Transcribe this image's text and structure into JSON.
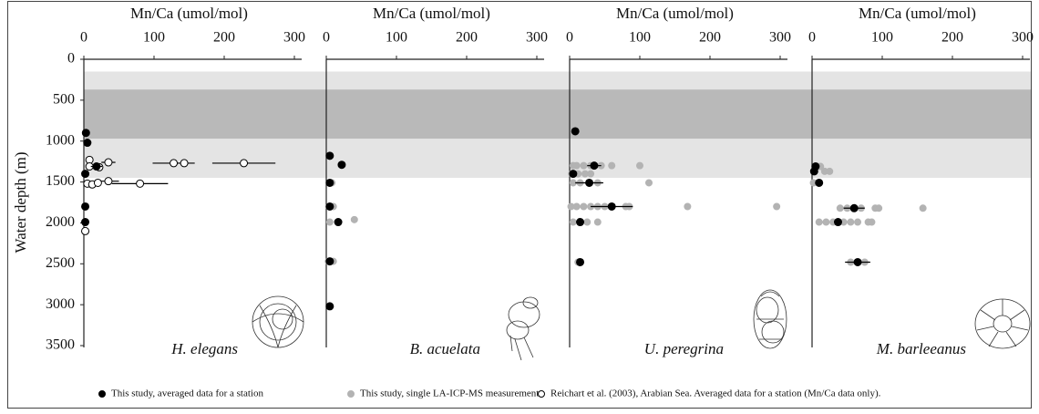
{
  "ylabel": "Water depth (m)",
  "shading": [
    {
      "from": 150,
      "to": 1450,
      "color": "#e4e4e4"
    },
    {
      "from": 370,
      "to": 970,
      "color": "#b9b9b9"
    }
  ],
  "legend": {
    "position": "bottom",
    "series": [
      {
        "name": "This study, averaged data for a station",
        "color": "#000000",
        "edge": "#000000"
      },
      {
        "name": "This study, single LA-ICP-MS measurement",
        "color": "#b3b3b3",
        "edge": "#b3b3b3"
      },
      {
        "name": "Reichart et al. (2003), Arabian Sea. Averaged data for a station (Mn/Ca data only).",
        "color": "#ffffff",
        "edge": "#000000"
      }
    ]
  },
  "chart_data": [
    {
      "type": "scatter",
      "title": "Mn/Ca (umol/mol)",
      "species": "H. elegans",
      "xlim": [
        0,
        300
      ],
      "xticks": [
        0,
        100,
        200,
        300
      ],
      "ylim": [
        0,
        3500
      ],
      "yticks": [
        0,
        500,
        1000,
        1500,
        2000,
        2500,
        3000,
        3500
      ],
      "y_inverted": true,
      "series": [
        {
          "color": "#b3b3b3",
          "edge": "#b3b3b3",
          "x": [],
          "y": [],
          "xerr": []
        },
        {
          "color": "#ffffff",
          "edge": "#000000",
          "x": [
            8,
            35,
            128,
            143,
            228,
            8,
            22,
            35,
            80,
            5,
            12,
            20,
            2
          ],
          "y": [
            1230,
            1260,
            1270,
            1270,
            1270,
            1310,
            1320,
            1490,
            1520,
            1520,
            1530,
            1510,
            2100
          ],
          "xerr": [
            null,
            10,
            30,
            null,
            45,
            null,
            null,
            15,
            40,
            null,
            null,
            null,
            null
          ]
        },
        {
          "color": "#000000",
          "edge": "#000000",
          "x": [
            3,
            5,
            18,
            2,
            2,
            2
          ],
          "y": [
            900,
            1020,
            1310,
            1400,
            1800,
            1990
          ],
          "xerr": [
            null,
            null,
            8,
            null,
            null,
            null
          ]
        }
      ]
    },
    {
      "type": "scatter",
      "title": "Mn/Ca (umol/mol)",
      "species": "B. acuelata",
      "xlim": [
        0,
        300
      ],
      "xticks": [
        0,
        100,
        200,
        300
      ],
      "ylim": [
        0,
        3500
      ],
      "y_inverted": true,
      "series": [
        {
          "color": "#b3b3b3",
          "edge": "#b3b3b3",
          "x": [
            8,
            10,
            4,
            40,
            5,
            10,
            3
          ],
          "y": [
            1510,
            1800,
            1800,
            1960,
            1990,
            2470,
            2470
          ],
          "xerr": [
            null,
            null,
            null,
            null,
            null,
            null,
            null
          ]
        },
        {
          "color": "#000000",
          "edge": "#000000",
          "x": [
            5,
            22,
            5,
            5,
            17,
            5,
            5
          ],
          "y": [
            1180,
            1290,
            1510,
            1800,
            1990,
            2470,
            3020
          ],
          "xerr": [
            null,
            null,
            null,
            null,
            null,
            null,
            null
          ]
        }
      ]
    },
    {
      "type": "scatter",
      "title": "Mn/Ca (umol/mol)",
      "species": "U. peregrina",
      "xlim": [
        0,
        300
      ],
      "xticks": [
        0,
        100,
        200,
        300
      ],
      "ylim": [
        0,
        3500
      ],
      "y_inverted": true,
      "series": [
        {
          "color": "#b3b3b3",
          "edge": "#b3b3b3",
          "x": [
            5,
            10,
            20,
            30,
            45,
            60,
            100,
            3,
            12,
            22,
            30,
            5,
            15,
            40,
            113,
            2,
            10,
            20,
            30,
            40,
            50,
            80,
            85,
            168,
            295,
            5,
            15,
            25,
            40,
            12
          ],
          "y": [
            1300,
            1300,
            1300,
            1300,
            1300,
            1300,
            1300,
            1400,
            1400,
            1400,
            1400,
            1510,
            1510,
            1510,
            1510,
            1800,
            1800,
            1800,
            1800,
            1800,
            1800,
            1800,
            1800,
            1800,
            1800,
            1990,
            1990,
            1990,
            1990,
            2480
          ],
          "xerr": [
            null,
            null,
            null,
            null,
            null,
            null,
            null,
            null,
            null,
            null,
            null,
            null,
            null,
            null,
            null,
            null,
            null,
            null,
            null,
            null,
            null,
            null,
            null,
            null,
            null,
            null,
            null,
            null,
            null,
            null
          ]
        },
        {
          "color": "#000000",
          "edge": "#000000",
          "x": [
            8,
            35,
            5,
            28,
            60,
            15,
            15
          ],
          "y": [
            880,
            1300,
            1400,
            1510,
            1800,
            1990,
            2480
          ],
          "xerr": [
            null,
            10,
            null,
            20,
            30,
            null,
            null
          ]
        }
      ]
    },
    {
      "type": "scatter",
      "title": "Mn/Ca (umol/mol)",
      "species": "M. barleeanus",
      "xlim": [
        0,
        300
      ],
      "xticks": [
        0,
        100,
        200,
        300
      ],
      "ylim": [
        0,
        3500
      ],
      "y_inverted": true,
      "series": [
        {
          "color": "#b3b3b3",
          "edge": "#b3b3b3",
          "x": [
            8,
            12,
            18,
            25,
            2,
            40,
            50,
            70,
            90,
            95,
            158,
            10,
            20,
            30,
            45,
            55,
            65,
            80,
            85,
            55,
            75
          ],
          "y": [
            1310,
            1310,
            1370,
            1370,
            1510,
            1820,
            1820,
            1820,
            1820,
            1820,
            1820,
            1990,
            1990,
            1990,
            1990,
            1990,
            1990,
            1990,
            1990,
            2480,
            2480
          ],
          "xerr": [
            null,
            null,
            null,
            null,
            null,
            null,
            null,
            null,
            null,
            null,
            null,
            null,
            null,
            null,
            null,
            null,
            null,
            null,
            null,
            null,
            null
          ]
        },
        {
          "color": "#000000",
          "edge": "#000000",
          "x": [
            5,
            3,
            10,
            60,
            37,
            65
          ],
          "y": [
            1310,
            1370,
            1510,
            1820,
            1990,
            2480
          ],
          "xerr": [
            null,
            null,
            null,
            15,
            null,
            18
          ]
        }
      ]
    }
  ]
}
